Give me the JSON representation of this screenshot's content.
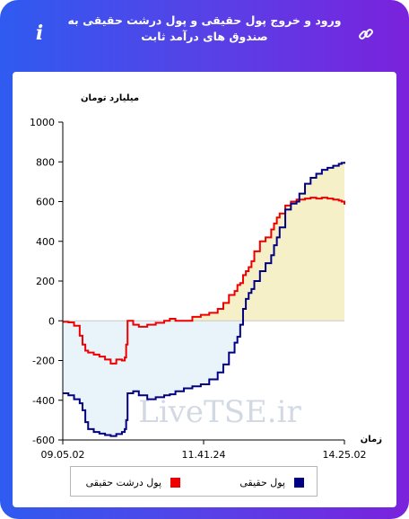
{
  "header": {
    "title": "ورود و خروج پول حقیقی و پول درشت حقیقی به صندوق های درآمد ثابت",
    "info_icon": "info-icon",
    "link_icon": "link-icon"
  },
  "colors": {
    "frame_start": "#2f5bf0",
    "frame_end": "#7a22dc",
    "real_money": "#000080",
    "big_real_money": "#ee0000",
    "positive_fill": "#f6f0c8",
    "negative_fill": "#e9f3fa"
  },
  "watermark": "LiveTSE.ir",
  "chart_data": {
    "type": "line",
    "title": "",
    "xlabel": "زمان",
    "ylabel": "میلیارد تومان",
    "ylim": [
      -600,
      1000
    ],
    "yticks": [
      "1000",
      "800",
      "600",
      "400",
      "200",
      "0",
      "-200",
      "-400",
      "-600"
    ],
    "ytick_values": [
      1000,
      800,
      600,
      400,
      200,
      0,
      -200,
      -400,
      -600
    ],
    "xticks": [
      "09.05.02",
      "11.41.24",
      "14.25.02"
    ],
    "xtick_positions": [
      0,
      50,
      100
    ],
    "grid": false,
    "legend_position": "bottom",
    "series": [
      {
        "name": "پول حقیقی",
        "color": "#000080",
        "x": [
          0,
          2,
          4,
          6,
          7,
          8,
          9,
          11,
          13,
          15,
          17,
          19,
          21,
          22,
          22.5,
          23,
          25,
          27,
          30,
          33,
          36,
          38,
          40,
          43,
          46,
          49,
          52,
          55,
          57,
          59,
          61,
          62,
          63,
          64,
          65,
          66,
          67,
          68,
          70,
          72,
          74,
          75,
          76,
          77,
          79,
          81,
          83,
          84,
          86,
          88,
          90,
          92,
          94,
          96,
          98,
          99,
          100
        ],
        "y": [
          -365,
          -375,
          -395,
          -415,
          -450,
          -510,
          -545,
          -560,
          -568,
          -575,
          -580,
          -570,
          -560,
          -545,
          -500,
          -365,
          -355,
          -375,
          -395,
          -385,
          -375,
          -370,
          -355,
          -340,
          -330,
          -320,
          -295,
          -260,
          -220,
          -160,
          -110,
          -80,
          -20,
          60,
          110,
          140,
          160,
          200,
          250,
          290,
          330,
          380,
          420,
          470,
          560,
          590,
          600,
          640,
          690,
          720,
          740,
          760,
          770,
          780,
          790,
          795,
          800
        ]
      },
      {
        "name": "پول درشت حقیقی",
        "color": "#ee0000",
        "x": [
          0,
          2,
          4,
          6,
          7,
          8,
          9,
          11,
          13,
          15,
          17,
          19,
          21,
          22,
          22.5,
          23,
          25,
          27,
          30,
          33,
          36,
          38,
          40,
          43,
          46,
          49,
          52,
          55,
          57,
          59,
          61,
          62,
          63,
          64,
          65,
          66,
          67,
          68,
          70,
          72,
          74,
          75,
          76,
          77,
          79,
          81,
          83,
          84,
          86,
          88,
          90,
          92,
          94,
          96,
          98,
          99,
          100
        ],
        "y": [
          -5,
          -8,
          -25,
          -75,
          -120,
          -150,
          -160,
          -170,
          -180,
          -195,
          -215,
          -195,
          -200,
          -185,
          -120,
          0,
          -20,
          -30,
          -20,
          -10,
          0,
          10,
          0,
          0,
          20,
          30,
          40,
          60,
          90,
          130,
          150,
          180,
          190,
          230,
          250,
          270,
          300,
          350,
          400,
          420,
          460,
          490,
          520,
          540,
          580,
          600,
          610,
          610,
          615,
          620,
          615,
          620,
          615,
          610,
          605,
          600,
          585
        ]
      }
    ]
  }
}
